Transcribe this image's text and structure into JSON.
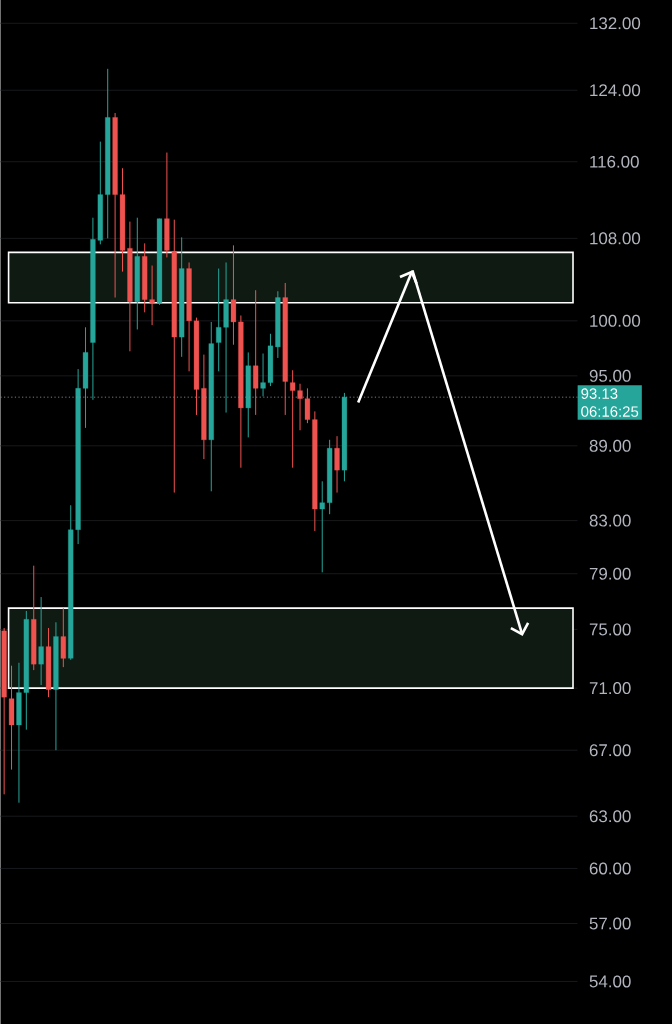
{
  "chart_data": {
    "type": "candlestick",
    "categories": [
      null,
      null,
      null,
      null,
      null,
      null,
      null,
      null,
      null,
      null,
      null,
      null,
      null,
      null,
      null,
      null,
      null,
      null,
      null,
      null,
      null,
      null,
      null,
      null,
      null,
      null,
      null,
      null,
      null,
      null,
      null,
      null,
      null,
      null,
      null,
      null,
      null,
      null,
      null,
      null,
      null,
      null,
      null,
      null,
      null,
      null,
      null,
      null,
      null,
      null,
      null,
      null,
      null,
      null,
      null,
      null,
      null,
      null,
      null,
      null,
      null,
      null,
      null,
      null,
      null,
      null,
      null,
      null,
      null,
      null,
      null,
      null,
      null,
      null,
      null,
      null,
      null,
      null
    ],
    "ohlc": [
      [
        74.9,
        75.1,
        64.3,
        70.4
      ],
      [
        70.3,
        72.5,
        65.8,
        68.6
      ],
      [
        68.6,
        72.7,
        63.8,
        70.7
      ],
      [
        70.7,
        76.3,
        68.3,
        75.7
      ],
      [
        75.7,
        79.6,
        72.2,
        72.6
      ],
      [
        72.6,
        77.3,
        71.2,
        73.8
      ],
      [
        73.8,
        75.1,
        70.4,
        70.9
      ],
      [
        70.9,
        75.5,
        67.0,
        74.5
      ],
      [
        74.5,
        76.5,
        72.4,
        73.0
      ],
      [
        73.0,
        84.2,
        72.9,
        82.3
      ],
      [
        82.3,
        95.6,
        81.2,
        93.9
      ],
      [
        93.9,
        99.4,
        90.5,
        97.1
      ],
      [
        98.0,
        110.1,
        92.9,
        107.9
      ],
      [
        107.8,
        118.2,
        107.4,
        112.5
      ],
      [
        112.5,
        126.5,
        108.0,
        120.9
      ],
      [
        120.9,
        121.4,
        102.2,
        112.5
      ],
      [
        112.5,
        115.3,
        104.7,
        106.8
      ],
      [
        107.0,
        109.7,
        97.2,
        101.8
      ],
      [
        101.8,
        110.1,
        99.2,
        106.2
      ],
      [
        106.2,
        107.5,
        100.8,
        102.0
      ],
      [
        102.0,
        105.3,
        99.6,
        101.7
      ],
      [
        101.7,
        110.0,
        101.5,
        110.0
      ],
      [
        110.0,
        117.0,
        106.1,
        106.8
      ],
      [
        106.7,
        109.9,
        85.2,
        98.5
      ],
      [
        98.5,
        108.1,
        96.7,
        105.0
      ],
      [
        105.0,
        105.6,
        95.4,
        100.0
      ],
      [
        100.0,
        100.3,
        91.6,
        93.8
      ],
      [
        93.9,
        96.9,
        87.9,
        89.5
      ],
      [
        89.5,
        99.9,
        85.3,
        97.9
      ],
      [
        98.0,
        105.0,
        95.4,
        99.4
      ],
      [
        99.4,
        105.6,
        91.8,
        102.0
      ],
      [
        102.0,
        107.3,
        97.8,
        99.9
      ],
      [
        99.9,
        100.5,
        87.2,
        92.2
      ],
      [
        92.2,
        97.1,
        89.7,
        95.9
      ],
      [
        95.9,
        102.9,
        91.6,
        93.9
      ],
      [
        93.9,
        97.0,
        93.2,
        94.4
      ],
      [
        94.4,
        98.8,
        94.1,
        97.7
      ],
      [
        97.6,
        102.8,
        96.6,
        102.2
      ],
      [
        102.2,
        103.6,
        91.6,
        94.5
      ],
      [
        94.4,
        95.5,
        87.2,
        93.7
      ],
      [
        93.7,
        94.3,
        90.3,
        93.0
      ],
      [
        93.0,
        93.9,
        90.9,
        91.2
      ],
      [
        91.2,
        91.9,
        82.2,
        83.9
      ],
      [
        83.9,
        86.1,
        79.1,
        84.4
      ],
      [
        84.4,
        89.5,
        83.5,
        88.8
      ],
      [
        88.8,
        89.8,
        85.2,
        87.0
      ],
      [
        87.0,
        93.5,
        86.1,
        93.13
      ],
      null,
      null,
      null,
      null,
      null,
      null,
      null,
      null,
      null,
      null,
      null,
      null,
      null,
      null,
      null,
      null,
      null,
      null,
      null,
      null,
      null,
      null,
      null,
      null,
      null,
      null,
      null,
      null,
      null,
      null,
      null
    ],
    "colors": [
      "#ef5350",
      "#ef5350",
      "#26a69a",
      "#26a69a",
      "#ef5350",
      "#26a69a",
      "#ef5350",
      "#26a69a",
      "#ef5350",
      "#26a69a",
      "#26a69a",
      "#26a69a",
      "#26a69a",
      "#26a69a",
      "#26a69a",
      "#ef5350",
      "#ef5350",
      "#ef5350",
      "#26a69a",
      "#ef5350",
      "#ef5350",
      "#26a69a",
      "#ef5350",
      "#ef5350",
      "#26a69a",
      "#ef5350",
      "#ef5350",
      "#ef5350",
      "#26a69a",
      "#26a69a",
      "#26a69a",
      "#ef5350",
      "#ef5350",
      "#26a69a",
      "#ef5350",
      "#26a69a",
      "#26a69a",
      "#26a69a",
      "#ef5350",
      "#ef5350",
      "#ef5350",
      "#ef5350",
      "#ef5350",
      "#26a69a",
      "#26a69a",
      "#ef5350",
      "#26a69a",
      null,
      null,
      null,
      null,
      null,
      null,
      null,
      null,
      null,
      null,
      null,
      null,
      null,
      null,
      null,
      null,
      null,
      null,
      null,
      null,
      null,
      null,
      null,
      null,
      null,
      null,
      null,
      null,
      null,
      null,
      null
    ],
    "log": true,
    "ylim": [
      51.9,
      134.9
    ],
    "yticks": [
      {
        "value": 54,
        "label": "54.00"
      },
      {
        "value": 57,
        "label": "57.00"
      },
      {
        "value": 60,
        "label": "60.00"
      },
      {
        "value": 63,
        "label": "63.00"
      },
      {
        "value": 67,
        "label": "67.00"
      },
      {
        "value": 71,
        "label": "71.00"
      },
      {
        "value": 75,
        "label": "75.00"
      },
      {
        "value": 79,
        "label": "79.00"
      },
      {
        "value": 83,
        "label": "83.00"
      },
      {
        "value": 89,
        "label": "89.00"
      },
      {
        "value": 95,
        "label": "95.00"
      },
      {
        "value": 100,
        "label": "100.00"
      },
      {
        "value": 108,
        "label": "108.00"
      },
      {
        "value": 116,
        "label": "116.00"
      },
      {
        "value": 124,
        "label": "124.00"
      },
      {
        "value": 132,
        "label": "132.00"
      }
    ],
    "tick_labels": "y",
    "grid": "y",
    "ref_lines": [
      {
        "axis": "y",
        "value": 93.13,
        "label": "93.13",
        "color": "#8a8d96",
        "line_style": "dotted"
      }
    ],
    "bands": [
      {
        "axis": "y",
        "from": 101.7,
        "to": 106.6,
        "color": "#0f1a12"
      },
      {
        "axis": "y",
        "from": 71.0,
        "to": 76.5,
        "color": "#0f1a12"
      }
    ],
    "annotations": [
      "06:16:25"
    ]
  }
}
